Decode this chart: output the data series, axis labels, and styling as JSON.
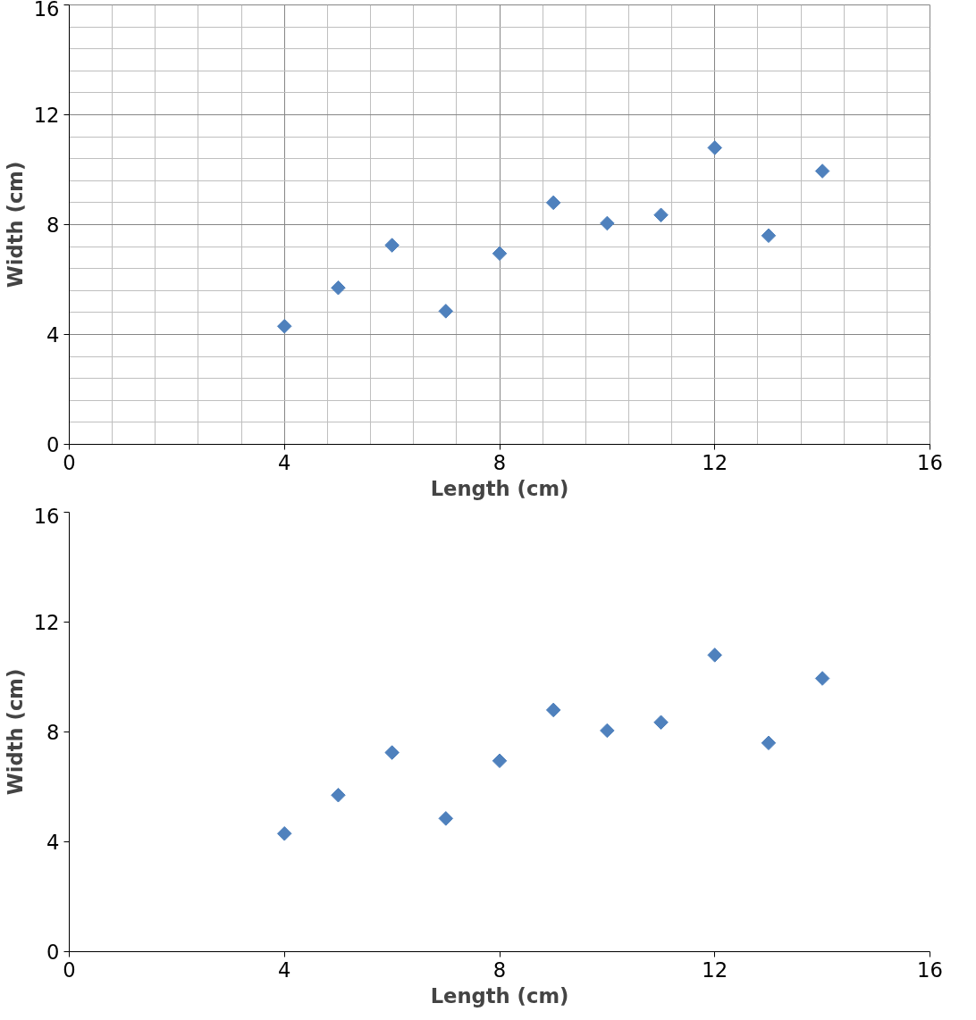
{
  "chart_data": [
    {
      "type": "scatter",
      "xlabel": "Length (cm)",
      "ylabel": "Width (cm)",
      "x": [
        4,
        5,
        6,
        7,
        8,
        9,
        10,
        11,
        12,
        13,
        14
      ],
      "series": [
        {
          "color": "#4f81bd",
          "values": [
            4.3,
            5.7,
            7.25,
            4.85,
            6.95,
            8.8,
            8.05,
            8.35,
            10.8,
            7.6,
            9.95
          ]
        }
      ],
      "xlim": [
        0,
        16
      ],
      "ylim": [
        0,
        16
      ],
      "xticks": [
        0,
        4,
        8,
        12,
        16
      ],
      "yticks": [
        0,
        4,
        8,
        12,
        16
      ],
      "grid": true,
      "marker": "diamond"
    },
    {
      "type": "scatter",
      "xlabel": "Length (cm)",
      "ylabel": "Width (cm)",
      "x": [
        4,
        5,
        6,
        7,
        8,
        9,
        10,
        11,
        12,
        13,
        14
      ],
      "series": [
        {
          "color": "#4f81bd",
          "values": [
            4.3,
            5.7,
            7.25,
            4.85,
            6.95,
            8.8,
            8.05,
            8.35,
            10.8,
            7.6,
            9.95
          ]
        }
      ],
      "xlim": [
        0,
        16
      ],
      "ylim": [
        0,
        16
      ],
      "xticks": [
        0,
        4,
        8,
        12,
        16
      ],
      "yticks": [
        0,
        4,
        8,
        12,
        16
      ],
      "grid": false,
      "marker": "diamond"
    }
  ]
}
